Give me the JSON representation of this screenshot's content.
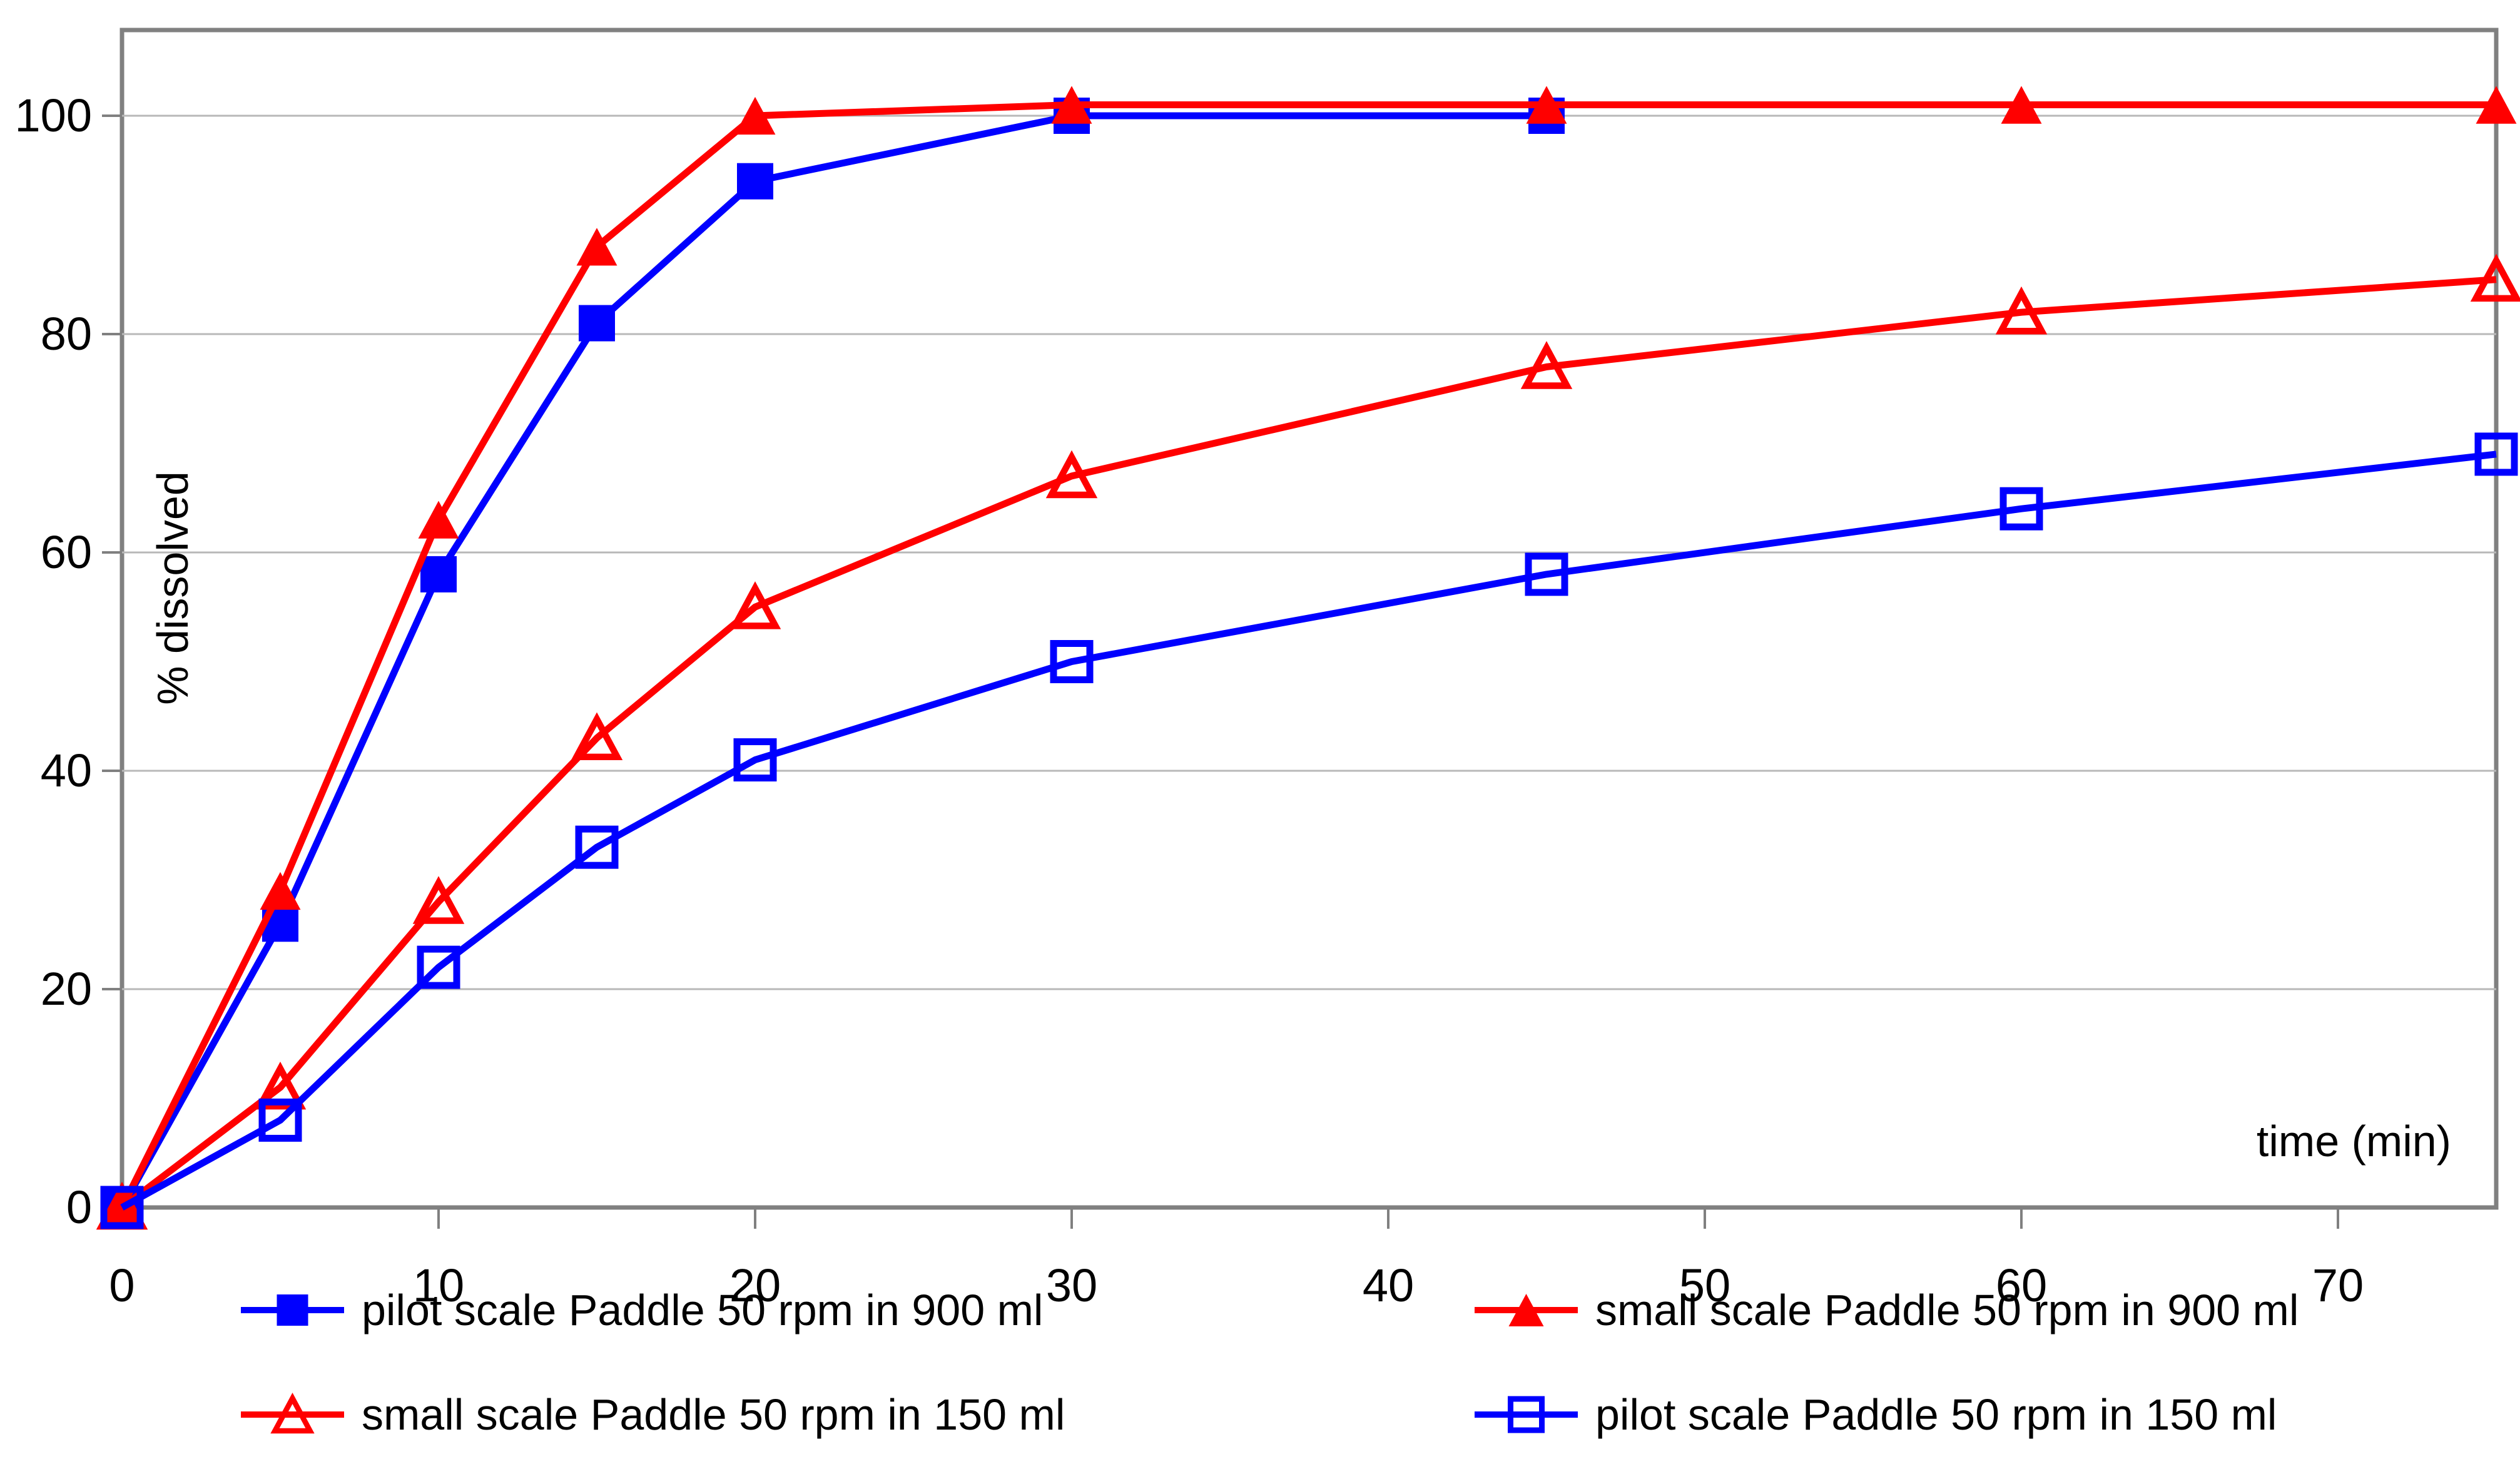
{
  "figure": {
    "background": "#ffffff",
    "border_color": "#808080",
    "gridline_color": "#b8b8b8"
  },
  "chart_data": {
    "type": "line",
    "title": "",
    "xlabel": "time (min)",
    "ylabel": "% dissolved",
    "xlim": [
      0,
      75
    ],
    "ylim": [
      0,
      108
    ],
    "grid": "horizontal",
    "legend_position": "bottom",
    "x_tick_labels": [
      "0",
      "10",
      "20",
      "30",
      "40",
      "50",
      "60",
      "70"
    ],
    "x_tick_values": [
      0,
      10,
      20,
      30,
      40,
      50,
      60,
      70
    ],
    "y_tick_labels": [
      "0",
      "20",
      "40",
      "60",
      "80",
      "100"
    ],
    "y_tick_values": [
      0,
      20,
      40,
      60,
      80,
      100
    ],
    "categories": [
      0,
      5,
      10,
      15,
      20,
      30,
      45,
      60,
      75
    ],
    "series": [
      {
        "name": "pilot scale  Paddle 50 rpm in 900 ml",
        "color": "#0000ff",
        "marker": "square-filled",
        "x": [
          0,
          5,
          10,
          15,
          20,
          30,
          45
        ],
        "values": [
          0,
          26,
          58,
          81,
          94,
          100,
          100
        ]
      },
      {
        "name": "small scale Paddle 50 rpm in 900 ml",
        "color": "#ff0000",
        "marker": "triangle-filled",
        "x": [
          0,
          5,
          10,
          15,
          20,
          30,
          45,
          60,
          75
        ],
        "values": [
          0,
          29,
          63,
          88,
          100,
          101,
          101,
          101,
          101
        ]
      },
      {
        "name": "small scale Paddle 50 rpm in 150 ml",
        "color": "#ff0000",
        "marker": "triangle-open",
        "x": [
          0,
          5,
          10,
          15,
          20,
          30,
          45,
          60,
          75
        ],
        "values": [
          0,
          11,
          28,
          43,
          55,
          67,
          77,
          82,
          85
        ]
      },
      {
        "name": "pilot scale  Paddle 50 rpm in 150 ml",
        "color": "#0000ff",
        "marker": "square-open",
        "x": [
          0,
          5,
          10,
          15,
          20,
          30,
          45,
          60,
          75
        ],
        "values": [
          0,
          8,
          22,
          33,
          41,
          50,
          58,
          64,
          69
        ]
      }
    ],
    "legend_rows": [
      [
        0,
        1
      ],
      [
        2,
        3
      ]
    ]
  }
}
